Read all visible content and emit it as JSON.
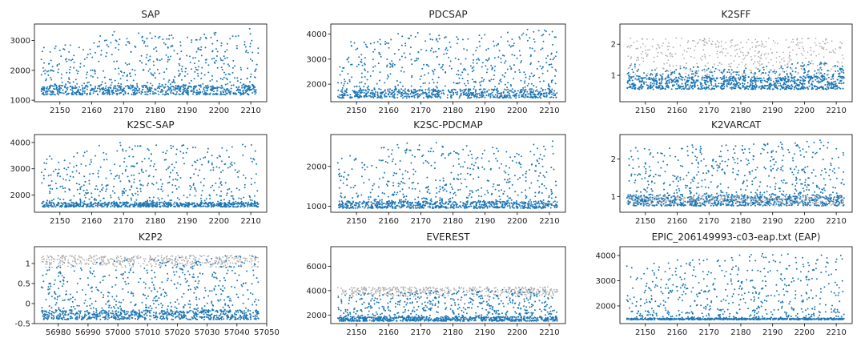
{
  "chart_data": [
    {
      "type": "scatter",
      "title": "SAP",
      "xlim": [
        2142,
        2215
      ],
      "ylim": [
        950,
        3550
      ],
      "xticks": [
        2150,
        2160,
        2170,
        2180,
        2190,
        2200,
        2210
      ],
      "yticks": [
        1000,
        2000,
        3000
      ],
      "base": 1180,
      "top": [
        2800,
        2900,
        3300,
        3300,
        3100,
        3300,
        3450
      ],
      "alt": null,
      "dense": 1450
    },
    {
      "type": "scatter",
      "title": "PDCSAP",
      "xlim": [
        2142,
        2215
      ],
      "ylim": [
        1300,
        4400
      ],
      "xticks": [
        2150,
        2160,
        2170,
        2180,
        2190,
        2200,
        2210
      ],
      "yticks": [
        2000,
        3000,
        4000
      ],
      "base": 1450,
      "top": [
        3600,
        3900,
        4100,
        3900,
        4000,
        4200,
        4200
      ],
      "alt": null,
      "dense": 1750
    },
    {
      "type": "scatter",
      "title": "K2SFF",
      "xlim": [
        2142,
        2215
      ],
      "ylim": [
        0.15,
        2.65
      ],
      "xticks": [
        2150,
        2160,
        2170,
        2180,
        2190,
        2200,
        2210
      ],
      "yticks": [
        1,
        2
      ],
      "base": 0.55,
      "top": [
        1.4,
        1.2,
        1.3,
        1.2,
        1.3,
        1.5,
        1.3
      ],
      "alt": {
        "base": 0.8,
        "top": 2.2
      },
      "dense": 0.9
    },
    {
      "type": "scatter",
      "title": "K2SC-SAP",
      "xlim": [
        2142,
        2215
      ],
      "ylim": [
        1350,
        4300
      ],
      "xticks": [
        2150,
        2160,
        2170,
        2180,
        2190,
        2200,
        2210
      ],
      "yticks": [
        2000,
        3000,
        4000
      ],
      "base": 1550,
      "top": [
        3500,
        3700,
        4100,
        3900,
        3900,
        4000,
        4000
      ],
      "alt": null,
      "dense": 1700
    },
    {
      "type": "scatter",
      "title": "K2SC-PDCMAP",
      "xlim": [
        2142,
        2215
      ],
      "ylim": [
        850,
        2800
      ],
      "xticks": [
        2150,
        2160,
        2170,
        2180,
        2190,
        2200,
        2210
      ],
      "yticks": [
        1000,
        2000
      ],
      "base": 950,
      "top": [
        2200,
        2450,
        2600,
        2600,
        2500,
        2550,
        2650
      ],
      "alt": null,
      "dense": 1100
    },
    {
      "type": "scatter",
      "title": "K2VARCAT",
      "xlim": [
        2142,
        2215
      ],
      "ylim": [
        0.58,
        2.65
      ],
      "xticks": [
        2150,
        2160,
        2170,
        2180,
        2190,
        2200,
        2210
      ],
      "yticks": [
        1,
        2
      ],
      "base": 0.75,
      "top": [
        2.3,
        2.3,
        2.4,
        2.4,
        2.5,
        2.5,
        2.5
      ],
      "alt": {
        "base": 0.75,
        "top": 1.0
      },
      "dense": 1.0
    },
    {
      "type": "scatter",
      "title": "K2P2",
      "xlim": [
        56972,
        57050
      ],
      "ylim": [
        -0.5,
        1.42
      ],
      "xticks": [
        56980,
        56990,
        57000,
        57010,
        57020,
        57030,
        57040,
        57050
      ],
      "yticks": [
        -0.5,
        0.0,
        0.5,
        1.0
      ],
      "base": -0.4,
      "top": [
        0.9,
        1.0,
        1.1,
        1.1,
        1.2,
        1.2,
        1.2
      ],
      "alt": {
        "base": 0.9,
        "top": 1.2
      },
      "dense": -0.2
    },
    {
      "type": "scatter",
      "title": "EVEREST",
      "xlim": [
        2142,
        2215
      ],
      "ylim": [
        1300,
        7600
      ],
      "xticks": [
        2150,
        2160,
        2170,
        2180,
        2190,
        2200,
        2210
      ],
      "yticks": [
        2000,
        4000,
        6000
      ],
      "base": 1500,
      "top": [
        3700,
        3800,
        4000,
        4000,
        4100,
        4100,
        4000
      ],
      "alt": {
        "base": 3500,
        "top": 4300
      },
      "dense": 1800
    },
    {
      "type": "scatter",
      "title": "EPIC_206149993-c03-eap.txt (EAP)",
      "xlim": [
        2142,
        2215
      ],
      "ylim": [
        1300,
        4350
      ],
      "xticks": [
        2150,
        2160,
        2170,
        2180,
        2190,
        2200,
        2210
      ],
      "yticks": [
        2000,
        3000,
        4000
      ],
      "base": 1450,
      "top": [
        3600,
        3800,
        3900,
        4000,
        4100,
        4000,
        4100
      ],
      "alt": null,
      "dense": 1500
    }
  ],
  "colors": {
    "series": "#1f77b4",
    "secondary": "#b0b0b0",
    "axis": "#000000",
    "text": "#222222"
  }
}
